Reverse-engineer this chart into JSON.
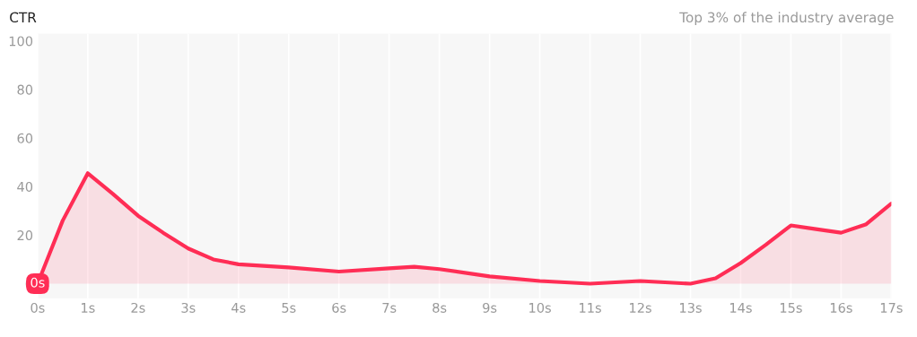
{
  "chart_data": {
    "type": "area",
    "title": "CTR",
    "subtitle": "Top 3% of the industry average",
    "x": [
      0,
      0.5,
      1,
      1.5,
      2,
      2.5,
      3,
      3.5,
      4,
      5,
      6,
      7,
      7.5,
      8,
      9,
      10,
      11,
      12,
      13,
      13.5,
      14,
      14.5,
      15,
      15.5,
      16,
      16.5,
      17
    ],
    "series": [
      {
        "color": "#ff2d55",
        "values": [
          0,
          26,
          45.5,
          37,
          28,
          21,
          14.5,
          10,
          8,
          6.7,
          5,
          6.3,
          7,
          6,
          3,
          1.1,
          0,
          1.1,
          0,
          2.2,
          8.5,
          16,
          24,
          22.5,
          21,
          24.5,
          33
        ]
      }
    ],
    "xlim": [
      0,
      17
    ],
    "xticks": [
      {
        "value": 0,
        "label": "0s"
      },
      {
        "value": 1,
        "label": "1s"
      },
      {
        "value": 2,
        "label": "2s"
      },
      {
        "value": 3,
        "label": "3s"
      },
      {
        "value": 4,
        "label": "4s"
      },
      {
        "value": 5,
        "label": "5s"
      },
      {
        "value": 6,
        "label": "6s"
      },
      {
        "value": 7,
        "label": "7s"
      },
      {
        "value": 8,
        "label": "8s"
      },
      {
        "value": 9,
        "label": "9s"
      },
      {
        "value": 10,
        "label": "10s"
      },
      {
        "value": 11,
        "label": "11s"
      },
      {
        "value": 12,
        "label": "12s"
      },
      {
        "value": 13,
        "label": "13s"
      },
      {
        "value": 14,
        "label": "14s"
      },
      {
        "value": 15,
        "label": "15s"
      },
      {
        "value": 16,
        "label": "16s"
      },
      {
        "value": 17,
        "label": "17s"
      }
    ],
    "ylim": [
      -6,
      103
    ],
    "yticks": [
      0,
      20,
      40,
      60,
      80,
      100
    ],
    "grid": "x",
    "annotations": [
      {
        "text": "0s",
        "x": 0,
        "y": 0
      }
    ]
  }
}
